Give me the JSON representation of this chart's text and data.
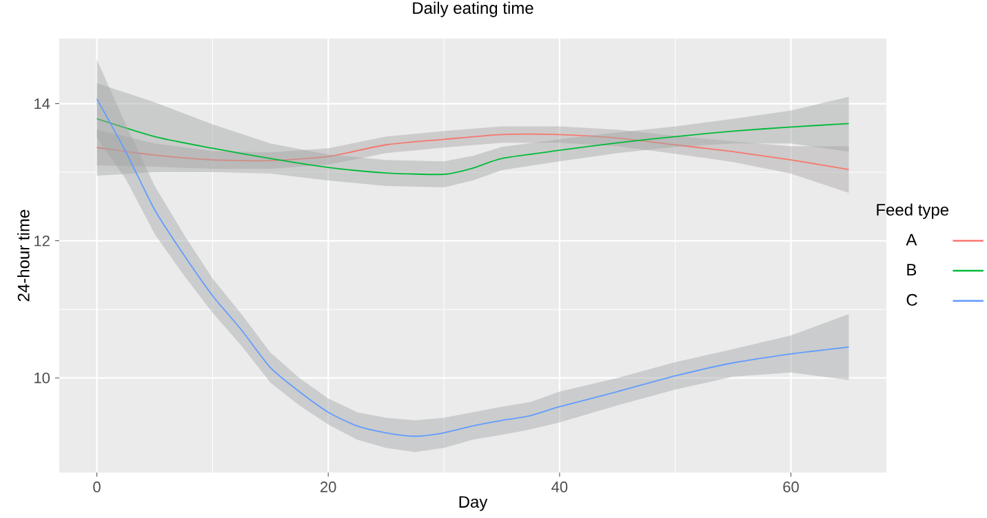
{
  "chart_data": {
    "type": "line",
    "title": "Daily eating time",
    "xlabel": "Day",
    "ylabel": "24-hour time",
    "legend_title": "Feed type",
    "xlim": [
      -3.25,
      68.25
    ],
    "ylim": [
      8.62,
      14.95
    ],
    "xticks": [
      0,
      20,
      40,
      60
    ],
    "yticks": [
      10,
      12,
      14
    ],
    "grid": true,
    "legend": "right",
    "marker": "none",
    "line_style": "solid",
    "series": [
      {
        "name": "A",
        "color": "#f8766d",
        "x": [
          0,
          5,
          10,
          15,
          20,
          25,
          30,
          35,
          40,
          45,
          50,
          55,
          60,
          65
        ],
        "values": [
          13.36,
          13.25,
          13.18,
          13.17,
          13.23,
          13.4,
          13.48,
          13.55,
          13.55,
          13.5,
          13.4,
          13.3,
          13.18,
          13.04
        ],
        "lower": [
          13.1,
          13.08,
          13.05,
          13.05,
          13.11,
          13.28,
          13.36,
          13.43,
          13.43,
          13.38,
          13.27,
          13.15,
          12.98,
          12.7
        ],
        "upper": [
          13.62,
          13.42,
          13.31,
          13.29,
          13.35,
          13.52,
          13.6,
          13.67,
          13.67,
          13.62,
          13.53,
          13.45,
          13.38,
          13.38
        ]
      },
      {
        "name": "B",
        "color": "#00ba38",
        "x": [
          0,
          5,
          10,
          15,
          20,
          25,
          30,
          32.5,
          35,
          40,
          45,
          50,
          55,
          60,
          65
        ],
        "values": [
          13.78,
          13.52,
          13.35,
          13.2,
          13.07,
          12.99,
          12.97,
          13.06,
          13.2,
          13.32,
          13.43,
          13.52,
          13.6,
          13.66,
          13.71
        ],
        "lower": [
          12.95,
          13.0,
          13.0,
          12.98,
          12.88,
          12.8,
          12.78,
          12.88,
          13.03,
          13.16,
          13.28,
          13.37,
          13.42,
          13.42,
          13.3
        ],
        "upper": [
          14.3,
          14.02,
          13.7,
          13.42,
          13.26,
          13.18,
          13.16,
          13.24,
          13.37,
          13.48,
          13.58,
          13.67,
          13.78,
          13.9,
          14.1
        ]
      },
      {
        "name": "C",
        "color": "#619cff",
        "x": [
          0,
          2.5,
          5,
          7.5,
          10,
          12.5,
          15,
          17.5,
          20,
          22.5,
          25,
          27.5,
          30,
          32.5,
          35,
          37.5,
          40,
          45,
          50,
          55,
          60,
          65
        ],
        "values": [
          14.07,
          13.3,
          12.45,
          11.8,
          11.2,
          10.7,
          10.15,
          9.8,
          9.5,
          9.3,
          9.2,
          9.15,
          9.2,
          9.3,
          9.38,
          9.45,
          9.58,
          9.8,
          10.03,
          10.22,
          10.35,
          10.45
        ],
        "lower": [
          13.5,
          12.9,
          12.1,
          11.5,
          10.95,
          10.47,
          9.93,
          9.6,
          9.32,
          9.1,
          8.98,
          8.92,
          8.98,
          9.1,
          9.17,
          9.25,
          9.35,
          9.6,
          9.83,
          10.02,
          10.08,
          9.97
        ],
        "upper": [
          14.64,
          13.7,
          12.8,
          12.1,
          11.45,
          10.93,
          10.37,
          10.0,
          9.7,
          9.5,
          9.42,
          9.38,
          9.42,
          9.5,
          9.58,
          9.65,
          9.8,
          10.0,
          10.23,
          10.42,
          10.62,
          10.93
        ]
      }
    ]
  }
}
